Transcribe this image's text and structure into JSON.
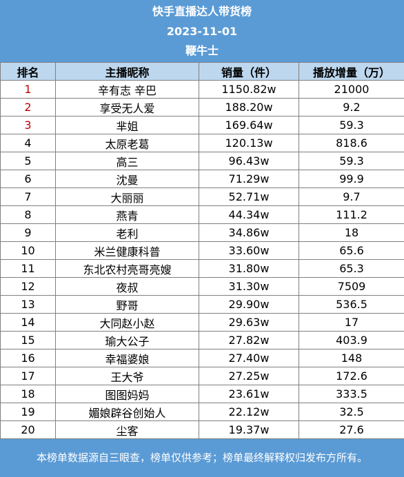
{
  "header": {
    "title": "快手直播达人带货榜",
    "date": "2023-11-01",
    "category": "鞭牛士"
  },
  "columns": [
    "排名",
    "主播昵称",
    "销量（件）",
    "播放增量（万）"
  ],
  "rows": [
    {
      "rank": "1",
      "name": "辛有志 辛巴",
      "sales": "1150.82w",
      "plays": "21000"
    },
    {
      "rank": "2",
      "name": "享受无人爱",
      "sales": "188.20w",
      "plays": "9.2"
    },
    {
      "rank": "3",
      "name": "芈姐",
      "sales": "169.64w",
      "plays": "59.3"
    },
    {
      "rank": "4",
      "name": "太原老葛",
      "sales": "120.13w",
      "plays": "818.6"
    },
    {
      "rank": "5",
      "name": "高三",
      "sales": "96.43w",
      "plays": "59.3"
    },
    {
      "rank": "6",
      "name": "沈曼",
      "sales": "71.29w",
      "plays": "99.9"
    },
    {
      "rank": "7",
      "name": "大丽丽",
      "sales": "52.71w",
      "plays": "9.7"
    },
    {
      "rank": "8",
      "name": "燕青",
      "sales": "44.34w",
      "plays": "111.2"
    },
    {
      "rank": "9",
      "name": "老利",
      "sales": "34.86w",
      "plays": "18"
    },
    {
      "rank": "10",
      "name": "米兰健康科普",
      "sales": "33.60w",
      "plays": "65.6"
    },
    {
      "rank": "11",
      "name": "东北农村亮哥亮嫂",
      "sales": "31.80w",
      "plays": "65.3"
    },
    {
      "rank": "12",
      "name": "夜叔",
      "sales": "31.30w",
      "plays": "7509"
    },
    {
      "rank": "13",
      "name": "野哥",
      "sales": "29.90w",
      "plays": "536.5"
    },
    {
      "rank": "14",
      "name": "大同赵小赵",
      "sales": "29.63w",
      "plays": "17"
    },
    {
      "rank": "15",
      "name": "瑜大公子",
      "sales": "27.82w",
      "plays": "403.9"
    },
    {
      "rank": "16",
      "name": "幸福婆娘",
      "sales": "27.40w",
      "plays": "148"
    },
    {
      "rank": "17",
      "name": "王大爷",
      "sales": "27.25w",
      "plays": "172.6"
    },
    {
      "rank": "18",
      "name": "图图妈妈",
      "sales": "23.61w",
      "plays": "333.5"
    },
    {
      "rank": "19",
      "name": "媚娘辟谷创始人",
      "sales": "22.12w",
      "plays": "32.5"
    },
    {
      "rank": "20",
      "name": "尘客",
      "sales": "19.37w",
      "plays": "27.6"
    }
  ],
  "footer": {
    "note": "本榜单数据源自三眼查，榜单仅供参考；榜单最终解释权归发布方所有。"
  },
  "colors": {
    "header_bg": "#5b9bd5",
    "column_header_bg": "#bdd7ee",
    "top_rank_text": "#c00000"
  }
}
